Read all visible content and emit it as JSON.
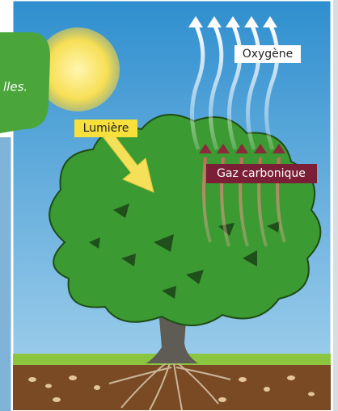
{
  "caption_fragment": "lles.",
  "labels": {
    "light": "Lumière",
    "oxygen": "Oxygène",
    "carbon_dioxide": "Gaz carbonique"
  }
}
